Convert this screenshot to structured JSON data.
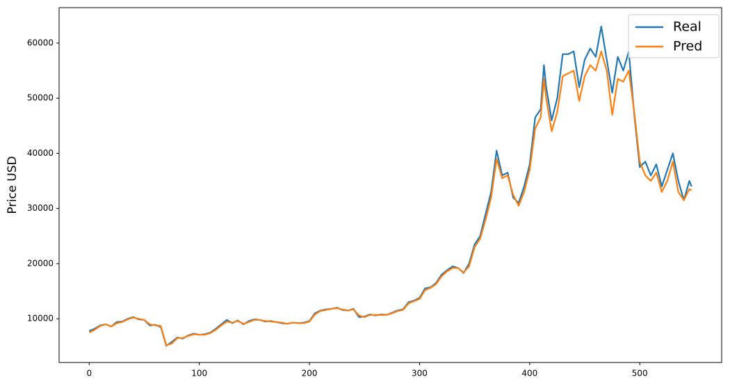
{
  "chart_data": {
    "type": "line",
    "ylabel": "Price USD",
    "x": [
      0,
      5,
      10,
      15,
      20,
      25,
      30,
      35,
      40,
      45,
      50,
      55,
      60,
      65,
      70,
      75,
      80,
      85,
      90,
      95,
      100,
      105,
      110,
      115,
      120,
      125,
      130,
      135,
      140,
      145,
      150,
      155,
      160,
      165,
      170,
      175,
      180,
      185,
      190,
      195,
      200,
      205,
      210,
      215,
      220,
      225,
      230,
      235,
      240,
      245,
      250,
      255,
      260,
      265,
      270,
      275,
      280,
      285,
      290,
      295,
      300,
      305,
      310,
      315,
      320,
      325,
      330,
      335,
      340,
      345,
      350,
      355,
      360,
      365,
      370,
      375,
      380,
      385,
      390,
      395,
      400,
      405,
      410,
      413,
      415,
      420,
      425,
      430,
      435,
      440,
      445,
      450,
      455,
      460,
      465,
      470,
      475,
      480,
      485,
      490,
      495,
      500,
      505,
      510,
      515,
      520,
      525,
      530,
      535,
      540,
      545,
      547
    ],
    "series": [
      {
        "name": "Real",
        "color": "#1f77b4",
        "values": [
          7800,
          8200,
          8800,
          9000,
          8600,
          9400,
          9500,
          10000,
          10300,
          9900,
          9800,
          8800,
          8900,
          8500,
          5100,
          5800,
          6600,
          6400,
          7000,
          7300,
          7100,
          7200,
          7500,
          8200,
          9000,
          9800,
          9200,
          9700,
          9000,
          9600,
          9900,
          9800,
          9500,
          9600,
          9400,
          9200,
          9100,
          9300,
          9200,
          9300,
          9600,
          11000,
          11500,
          11700,
          11800,
          12000,
          11600,
          11500,
          11800,
          10300,
          10400,
          10800,
          10600,
          10800,
          10700,
          11100,
          11500,
          11700,
          13000,
          13300,
          13800,
          15500,
          15700,
          16500,
          18000,
          18800,
          19500,
          19200,
          18300,
          20000,
          23500,
          25000,
          29000,
          33000,
          40500,
          36000,
          36500,
          32000,
          31000,
          34000,
          38000,
          46500,
          48000,
          56000,
          52000,
          46000,
          50000,
          58000,
          58000,
          58500,
          52000,
          57000,
          59000,
          57500,
          63000,
          57000,
          51000,
          57500,
          55000,
          58500,
          47000,
          37500,
          38500,
          36000,
          38000,
          34000,
          37000,
          40000,
          35000,
          31500,
          35000,
          34000
        ]
      },
      {
        "name": "Pred",
        "color": "#ff7f0e",
        "values": [
          7500,
          8000,
          8700,
          9000,
          8600,
          9200,
          9400,
          9900,
          10200,
          10000,
          9800,
          9000,
          8800,
          8700,
          5200,
          5500,
          6500,
          6500,
          6900,
          7200,
          7100,
          7100,
          7400,
          8000,
          8800,
          9500,
          9300,
          9600,
          9100,
          9400,
          9800,
          9800,
          9600,
          9500,
          9400,
          9300,
          9100,
          9300,
          9200,
          9200,
          9500,
          10800,
          11400,
          11600,
          11800,
          11900,
          11700,
          11500,
          11700,
          10600,
          10300,
          10700,
          10700,
          10700,
          10700,
          11000,
          11400,
          11600,
          12800,
          13200,
          13600,
          15200,
          15600,
          16300,
          17700,
          18600,
          19200,
          19200,
          18400,
          19500,
          23000,
          24500,
          28000,
          32000,
          39000,
          35500,
          36000,
          32500,
          30500,
          33000,
          37000,
          44500,
          46500,
          53500,
          50000,
          44000,
          47500,
          54000,
          54500,
          55000,
          49500,
          54000,
          56000,
          55000,
          58500,
          55000,
          47000,
          53500,
          53000,
          55000,
          47500,
          38500,
          36000,
          35000,
          36500,
          33000,
          35000,
          38500,
          33000,
          31500,
          33500,
          33300
        ]
      }
    ],
    "xlim": [
      -27.35,
      574.35
    ],
    "ylim": [
      2075,
      66425
    ],
    "xticks": [
      0,
      100,
      200,
      300,
      400,
      500
    ],
    "yticks": [
      10000,
      20000,
      30000,
      40000,
      50000,
      60000
    ],
    "legend": "upper right"
  }
}
